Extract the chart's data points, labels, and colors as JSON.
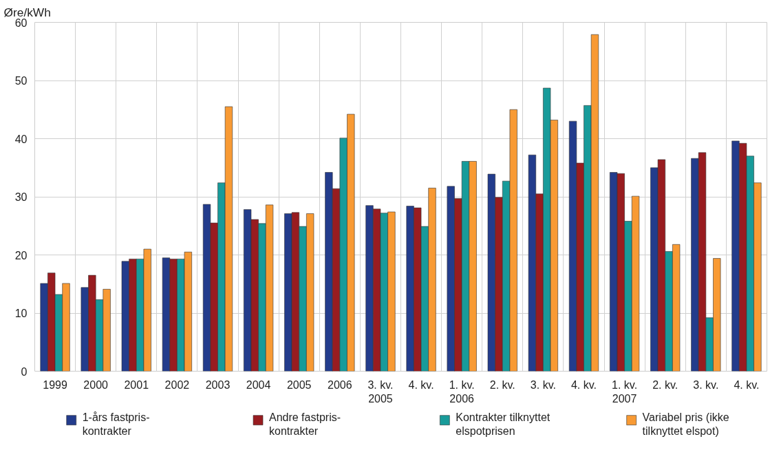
{
  "chart_data": {
    "type": "bar",
    "ylabel": "Øre/kWh",
    "categories": [
      "1999",
      "2000",
      "2001",
      "2002",
      "2003",
      "2004",
      "2005",
      "2006",
      "3. kv.\n2005",
      "4. kv.",
      "1. kv.\n2006",
      "2. kv.",
      "3. kv.",
      "4. kv.",
      "1. kv.\n2007",
      "2. kv.",
      "3. kv.",
      "4. kv."
    ],
    "series": [
      {
        "name": "1-års fastpris-kontrakter",
        "color": "#233c8c",
        "values": [
          15.1,
          14.4,
          18.9,
          19.5,
          28.7,
          27.8,
          27.1,
          34.2,
          28.5,
          28.4,
          31.8,
          33.9,
          37.2,
          43.0,
          34.2,
          35.0,
          36.6,
          39.6
        ]
      },
      {
        "name": "Andre fastpris-kontrakter",
        "color": "#981c20",
        "values": [
          16.9,
          16.5,
          19.3,
          19.3,
          25.5,
          26.1,
          27.3,
          31.4,
          27.9,
          28.1,
          29.7,
          29.9,
          30.5,
          35.8,
          34.0,
          36.4,
          37.6,
          39.2
        ]
      },
      {
        "name": "Kontrakter tilknyttet elspotprisen",
        "color": "#189b9a",
        "values": [
          13.2,
          12.3,
          19.3,
          19.3,
          32.4,
          25.4,
          24.9,
          40.1,
          27.2,
          24.9,
          36.1,
          32.7,
          48.7,
          45.7,
          25.8,
          20.6,
          9.2,
          37.0
        ]
      },
      {
        "name": "Variabel pris (ikke tilknyttet elspot)",
        "color": "#f89a34",
        "values": [
          15.1,
          14.1,
          21.0,
          20.5,
          45.5,
          28.6,
          27.1,
          44.2,
          27.4,
          31.5,
          36.1,
          45.0,
          43.2,
          57.9,
          30.1,
          21.8,
          19.4,
          32.4
        ]
      }
    ],
    "ylim": [
      0,
      60
    ],
    "yticks": [
      0,
      10,
      20,
      30,
      40,
      50,
      60
    ],
    "grid": true,
    "legend": "bottom"
  }
}
